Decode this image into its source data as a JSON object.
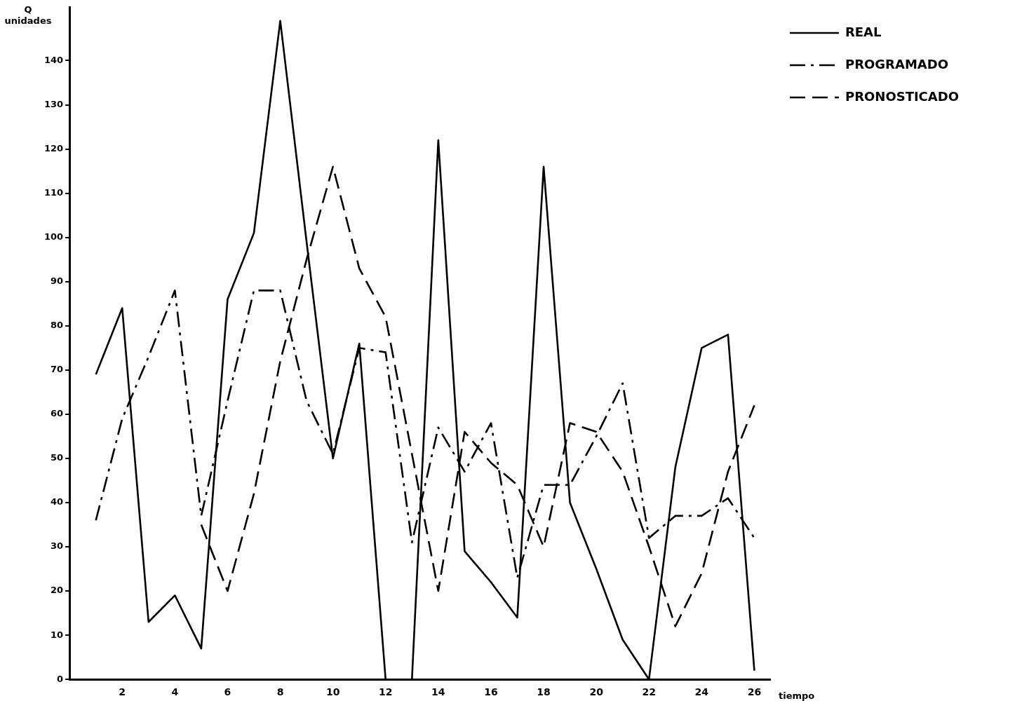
{
  "chart_data": {
    "type": "line",
    "ylabel": "Q\nunidades",
    "xlabel": "tiempo",
    "x": [
      1,
      2,
      3,
      4,
      5,
      6,
      7,
      8,
      9,
      10,
      11,
      12,
      13,
      14,
      15,
      16,
      17,
      18,
      19,
      20,
      21,
      22,
      23,
      24,
      25,
      26
    ],
    "xlim": [
      0,
      26.6
    ],
    "xticks": [
      2,
      4,
      6,
      8,
      10,
      12,
      14,
      16,
      18,
      20,
      22,
      24,
      26
    ],
    "ylim": [
      0,
      152
    ],
    "yticks": [
      0,
      10,
      20,
      30,
      40,
      50,
      60,
      70,
      80,
      90,
      100,
      110,
      120,
      130,
      140
    ],
    "grid": false,
    "legend": "top right",
    "marker": "none",
    "series": [
      {
        "name": "REAL",
        "color": "#000000",
        "line_style": "solid",
        "values": [
          69,
          84,
          13,
          19,
          7,
          86,
          101,
          149,
          99,
          50,
          76,
          0,
          0,
          122,
          29,
          22,
          14,
          116,
          40,
          25,
          9,
          0,
          48,
          75,
          78,
          2
        ]
      },
      {
        "name": "PROGRAMADO",
        "color": "#000000",
        "line_style": "dashdot",
        "values": [
          36,
          59,
          73,
          88,
          37,
          63,
          88,
          88,
          63,
          51,
          75,
          74,
          31,
          57,
          47,
          58,
          23,
          44,
          44,
          55,
          67,
          32,
          37,
          37,
          41,
          32
        ]
      },
      {
        "name": "PRONOSTICADO",
        "color": "#000000",
        "line_style": "dashed",
        "values": [
          null,
          null,
          null,
          null,
          35,
          20,
          42,
          72,
          95,
          116,
          93,
          82,
          51,
          20,
          56,
          49,
          44,
          30,
          58,
          56,
          47,
          30,
          12,
          24,
          47,
          62
        ]
      }
    ]
  }
}
